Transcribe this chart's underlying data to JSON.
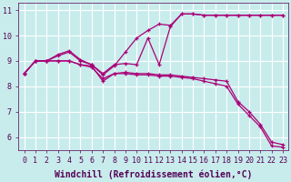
{
  "title": "",
  "xlabel": "Windchill (Refroidissement éolien,°C)",
  "ylabel": "",
  "bg_color": "#c8ecec",
  "line_color": "#aa0077",
  "grid_color": "#ffffff",
  "xlim_min": -0.5,
  "xlim_max": 23.5,
  "ylim_min": 5.5,
  "ylim_max": 11.3,
  "xticks": [
    0,
    1,
    2,
    3,
    4,
    5,
    6,
    7,
    8,
    9,
    10,
    11,
    12,
    13,
    14,
    15,
    16,
    17,
    18,
    19,
    20,
    21,
    22,
    23
  ],
  "yticks": [
    6,
    7,
    8,
    9,
    10,
    11
  ],
  "lines": [
    {
      "x": [
        0,
        1,
        2,
        3,
        4,
        5,
        6,
        7,
        8,
        9,
        10,
        11,
        12,
        13,
        14,
        15,
        16,
        17,
        18,
        19,
        20,
        21,
        22,
        23
      ],
      "y": [
        8.5,
        9.0,
        9.0,
        9.25,
        9.4,
        9.05,
        8.85,
        8.45,
        8.8,
        9.35,
        9.9,
        10.2,
        10.45,
        10.4,
        10.85,
        10.85,
        10.8,
        10.8,
        10.8,
        10.8,
        10.8,
        10.8,
        10.8,
        10.8
      ]
    },
    {
      "x": [
        0,
        1,
        2,
        3,
        4,
        5,
        6,
        7,
        8,
        9,
        10,
        11,
        12,
        13,
        14,
        15,
        16,
        17,
        18,
        19,
        20,
        21,
        22,
        23
      ],
      "y": [
        8.5,
        9.0,
        9.0,
        9.2,
        9.35,
        9.0,
        8.85,
        8.5,
        8.85,
        8.9,
        8.85,
        9.9,
        8.85,
        10.35,
        10.85,
        10.85,
        10.8,
        10.8,
        10.8,
        10.8,
        10.8,
        10.8,
        10.8,
        10.8
      ]
    },
    {
      "x": [
        0,
        1,
        2,
        3,
        4,
        5,
        6,
        7,
        8,
        9,
        10,
        11,
        12,
        13,
        14,
        15,
        16,
        17,
        18,
        19,
        20,
        21,
        22,
        23
      ],
      "y": [
        8.5,
        9.0,
        9.0,
        9.0,
        9.0,
        8.85,
        8.75,
        8.3,
        8.5,
        8.55,
        8.5,
        8.5,
        8.45,
        8.45,
        8.4,
        8.35,
        8.3,
        8.25,
        8.2,
        7.4,
        7.0,
        6.5,
        5.8,
        5.7
      ]
    },
    {
      "x": [
        0,
        1,
        2,
        3,
        4,
        5,
        6,
        7,
        8,
        9,
        10,
        11,
        12,
        13,
        14,
        15,
        16,
        17,
        18,
        19,
        20,
        21,
        22,
        23
      ],
      "y": [
        8.5,
        9.0,
        9.0,
        9.0,
        9.0,
        8.85,
        8.8,
        8.2,
        8.5,
        8.5,
        8.45,
        8.45,
        8.4,
        8.4,
        8.35,
        8.3,
        8.2,
        8.1,
        8.0,
        7.3,
        6.85,
        6.4,
        5.65,
        5.6
      ]
    }
  ],
  "xlabel_fontsize": 7,
  "tick_fontsize": 6
}
